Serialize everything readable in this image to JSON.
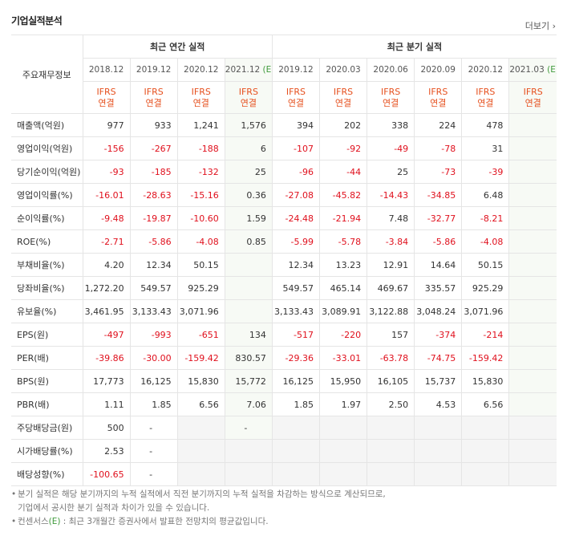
{
  "header": {
    "title": "기업실적분석",
    "more": "더보기"
  },
  "table": {
    "row_header": "주요재무정보",
    "groups": [
      {
        "label": "최근 연간 실적",
        "span": 4
      },
      {
        "label": "최근 분기 실적",
        "span": 6
      }
    ],
    "periods": [
      {
        "period": "2018.12"
      },
      {
        "period": "2019.12"
      },
      {
        "period": "2020.12"
      },
      {
        "period": "2021.12",
        "estimate": "(E)"
      },
      {
        "period": "2019.12"
      },
      {
        "period": "2020.03"
      },
      {
        "period": "2020.06"
      },
      {
        "period": "2020.09"
      },
      {
        "period": "2020.12"
      },
      {
        "period": "2021.03",
        "estimate": "(E)"
      }
    ],
    "basis": [
      [
        "IFRS",
        "연결"
      ],
      [
        "IFRS",
        "연결"
      ],
      [
        "IFRS",
        "연결"
      ],
      [
        "IFRS",
        "연결"
      ],
      [
        "IFRS",
        "연결"
      ],
      [
        "IFRS",
        "연결"
      ],
      [
        "IFRS",
        "연결"
      ],
      [
        "IFRS",
        "연결"
      ],
      [
        "IFRS",
        "연결"
      ],
      [
        "IFRS",
        "연결"
      ]
    ],
    "sections": [
      [
        {
          "label": "매출액(억원)",
          "cells": [
            "977",
            "933",
            "1,241",
            "1,576",
            "394",
            "202",
            "338",
            "224",
            "478",
            null
          ]
        },
        {
          "label": "영업이익(억원)",
          "cells": [
            "-156",
            "-267",
            "-188",
            "6",
            "-107",
            "-92",
            "-49",
            "-78",
            "31",
            null
          ]
        },
        {
          "label": "당기순이익(억원)",
          "cells": [
            "-93",
            "-185",
            "-132",
            "25",
            "-96",
            "-44",
            "25",
            "-73",
            "-39",
            null
          ]
        }
      ],
      [
        {
          "label": "영업이익률(%)",
          "cells": [
            "-16.01",
            "-28.63",
            "-15.16",
            "0.36",
            "-27.08",
            "-45.82",
            "-14.43",
            "-34.85",
            "6.48",
            null
          ]
        },
        {
          "label": "순이익률(%)",
          "cells": [
            "-9.48",
            "-19.87",
            "-10.60",
            "1.59",
            "-24.48",
            "-21.94",
            "7.48",
            "-32.77",
            "-8.21",
            null
          ]
        },
        {
          "label": "ROE(%)",
          "cells": [
            "-2.71",
            "-5.86",
            "-4.08",
            "0.85",
            "-5.99",
            "-5.78",
            "-3.84",
            "-5.86",
            "-4.08",
            null
          ]
        }
      ],
      [
        {
          "label": "부채비율(%)",
          "cells": [
            "4.20",
            "12.34",
            "50.15",
            null,
            "12.34",
            "13.23",
            "12.91",
            "14.64",
            "50.15",
            null
          ]
        },
        {
          "label": "당좌비율(%)",
          "cells": [
            "1,272.20",
            "549.57",
            "925.29",
            null,
            "549.57",
            "465.14",
            "469.67",
            "335.57",
            "925.29",
            null
          ]
        },
        {
          "label": "유보율(%)",
          "cells": [
            "3,461.95",
            "3,133.43",
            "3,071.96",
            null,
            "3,133.43",
            "3,089.91",
            "3,122.88",
            "3,048.24",
            "3,071.96",
            null
          ]
        }
      ],
      [
        {
          "label": "EPS(원)",
          "cells": [
            "-497",
            "-993",
            "-651",
            "134",
            "-517",
            "-220",
            "157",
            "-374",
            "-214",
            null
          ]
        },
        {
          "label": "PER(배)",
          "cells": [
            "-39.86",
            "-30.00",
            "-159.42",
            "830.57",
            "-29.36",
            "-33.01",
            "-63.78",
            "-74.75",
            "-159.42",
            null
          ]
        },
        {
          "label": "BPS(원)",
          "cells": [
            "17,773",
            "16,125",
            "15,830",
            "15,772",
            "16,125",
            "15,950",
            "16,105",
            "15,737",
            "15,830",
            null
          ]
        },
        {
          "label": "PBR(배)",
          "cells": [
            "1.11",
            "1.85",
            "6.56",
            "7.06",
            "1.85",
            "1.97",
            "2.50",
            "4.53",
            "6.56",
            null
          ]
        }
      ],
      [
        {
          "label": "주당배당금(원)",
          "cells": [
            "500",
            "-",
            null,
            "-",
            null,
            null,
            null,
            null,
            null,
            null
          ]
        },
        {
          "label": "시가배당률(%)",
          "cells": [
            "2.53",
            "-",
            null,
            null,
            null,
            null,
            null,
            null,
            null,
            null
          ]
        },
        {
          "label": "배당성향(%)",
          "cells": [
            "-100.65",
            "-",
            null,
            null,
            null,
            null,
            null,
            null,
            null,
            null
          ]
        }
      ]
    ]
  },
  "notes": [
    {
      "text": "분기 실적은 해당 분기까지의 누적 실적에서 직전 분기까지의 누적 실적을 차감하는 방식으로 계산되므로,"
    },
    {
      "text": "기업에서 공시한 분기 실적과 차이가 있을 수 있습니다."
    },
    {
      "before": "컨센서스",
      "highlight": "(E)",
      "after": " : 최근 3개월간 증권사에서 발표한 전망치의 평균값입니다."
    }
  ]
}
